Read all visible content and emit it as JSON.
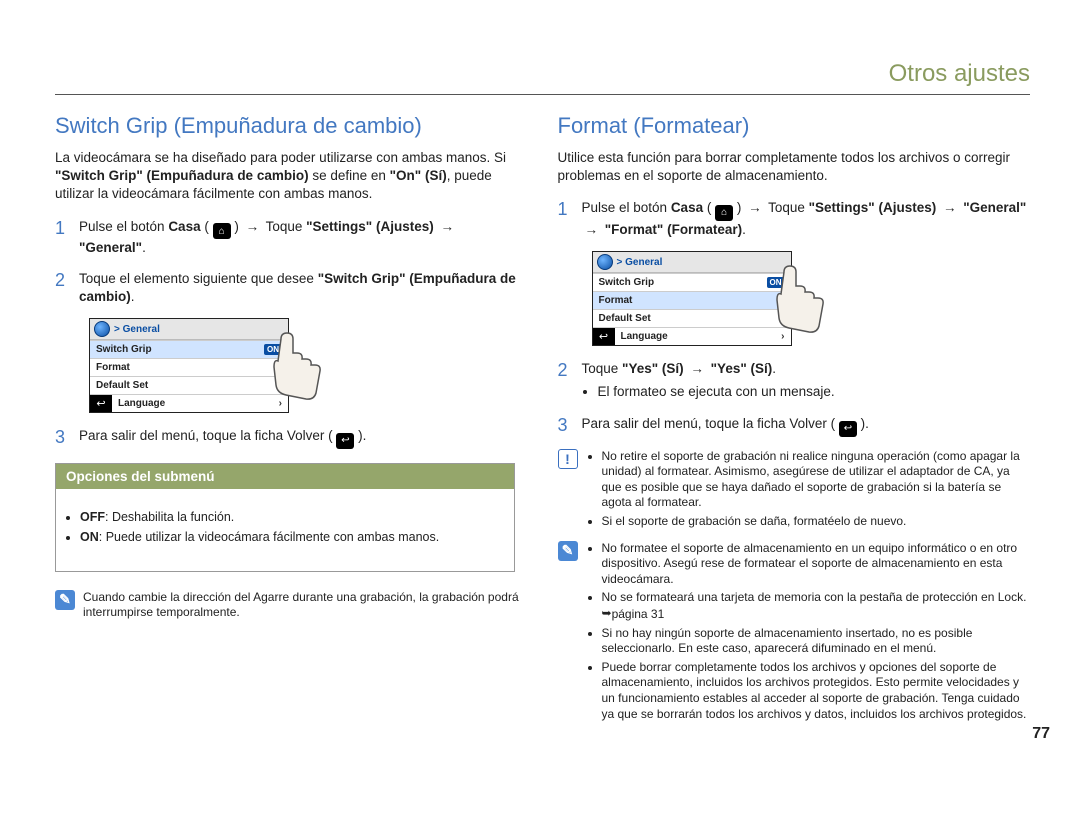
{
  "pageHeader": "Otros ajustes",
  "pageNumber": "77",
  "left": {
    "title": "Switch Grip (Empuñadura de cambio)",
    "intro_html": "La videocámara se ha diseñado para poder utilizarse con ambas manos. Si <b>\"Switch Grip\" (Empuñadura de cambio)</b> se define en <b>\"On\" (Sí)</b>, puede utilizar la videocámara fácilmente con ambas manos.",
    "step1_html": "Pulse el botón <b>Casa</b> ( <span class=\"home-icon\">⌂</span> ) <span class=\"arrow\">→</span> Toque <b>\"Settings\" (Ajustes)</b> <span class=\"arrow\">→</span> <b>\"General\"</b>.",
    "step2_html": "Toque el elemento siguiente que desee <b>\"Switch Grip\" (Empuñadura de cambio)</b>.",
    "step3_html": "Para salir del menú, toque la ficha Volver ( <span class=\"back-tab-icon\">↩</span> ).",
    "submenu": {
      "header": "Opciones del submenú",
      "items_html": [
        "<b>OFF</b>: Deshabilita la función.",
        "<b>ON</b>: Puede utilizar la videocámara fácilmente con ambas manos."
      ]
    },
    "noteInfo_html": "Cuando cambie la dirección del Agarre durante una grabación, la grabación podrá interrumpirse temporalmente."
  },
  "right": {
    "title": "Format (Formatear)",
    "intro": "Utilice esta función para borrar completamente todos los archivos o corregir problemas en el soporte de almacenamiento.",
    "step1_html": "Pulse el botón <b>Casa</b> ( <span class=\"home-icon\">⌂</span> ) <span class=\"arrow\">→</span> Toque <b>\"Settings\" (Ajustes)</b> <span class=\"arrow\">→</span> <b>\"General\"</b> <span class=\"arrow\">→</span> <b>\"Format\" (Formatear)</b>.",
    "step2_html": "Toque <b>\"Yes\" (Sí)</b> <span class=\"arrow\">→</span> <b>\"Yes\" (Sí)</b>.",
    "step2_bullet": "El formateo se ejecuta con un mensaje.",
    "step3_html": "Para salir del menú, toque la ficha Volver ( <span class=\"back-tab-icon\">↩</span> ).",
    "warn_items": [
      "No retire el soporte de grabación ni realice ninguna operación (como apagar la unidad) al formatear. Asimismo, asegúrese de utilizar el adaptador de CA, ya que es posible que se haya dañado el soporte de grabación si la batería se agota al formatear.",
      "Si el soporte de grabación se daña, formatéelo de nuevo."
    ],
    "info_items_html": [
      "No formatee el soporte de almacenamiento en un equipo informático o en otro dispositivo. Asegú rese de formatear el soporte de almacenamiento en esta videocámara.",
      "No se formateará una tarjeta de memoria con la pestaña de protección en Lock. <span class=\"pn-arrow\">➥</span>página 31",
      "Si no hay ningún soporte de almacenamiento insertado, no es posible seleccionarlo. En este caso, aparecerá difuminado en el menú.",
      "Puede borrar completamente todos los archivos y opciones del soporte de almacenamiento, incluidos los archivos protegidos. Esto permite velocidades y un funcionamiento estables al acceder al soporte de grabación. Tenga cuidado ya que se borrarán todos los archivos y datos, incluidos los archivos protegidos."
    ]
  },
  "miniMenu": {
    "breadcrumb": "> General",
    "rows": [
      "Switch Grip",
      "Format",
      "Default Set",
      "Language"
    ],
    "onBadge": "ON",
    "highlightLeft": 0,
    "highlightRight": 1
  },
  "colors": {
    "headerText": "#8a9b5f",
    "sectionTitle": "#4378c1",
    "submenuHeaderBg": "#95a66b"
  }
}
